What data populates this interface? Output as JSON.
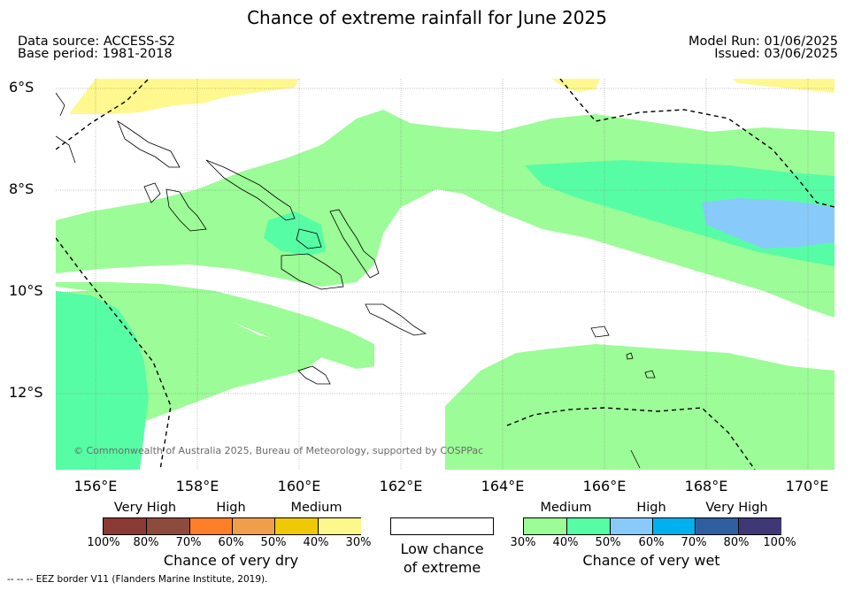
{
  "title": "Chance of extreme rainfall for June 2025",
  "source": {
    "data_source": "Data source: ACCESS-S2",
    "base_period": "Base period: 1981-2018",
    "model_run": "Model Run: 01/06/2025",
    "issued": "Issued: 03/06/2025"
  },
  "map": {
    "lat_labels": [
      "6°S",
      "8°S",
      "10°S",
      "12°S"
    ],
    "lon_labels": [
      "156°E",
      "158°E",
      "160°E",
      "162°E",
      "164°E",
      "166°E",
      "168°E",
      "170°E"
    ],
    "copyright": "© Commonwealth of Australia 2025, Bureau of Meteorology, supported by COSPPac",
    "colors": {
      "ocean": "#ffffff",
      "wet_medium_30_40": "#9cfc97",
      "wet_medium_40_50": "#57fda4",
      "wet_high_50_60": "#88cbfb",
      "dry_medium_30_40": "#fef88e"
    }
  },
  "legend": {
    "dry": {
      "headers": [
        "Very High",
        "High",
        "Medium"
      ],
      "ticks": [
        "100%",
        "80%",
        "70%",
        "60%",
        "50%",
        "40%",
        "30%"
      ],
      "title": "Chance of very dry",
      "colors": [
        "#8b3a35",
        "#8c4b3c",
        "#fd7f27",
        "#ef9f4b",
        "#efc903",
        "#fdf88c"
      ]
    },
    "low": {
      "line1": "Low chance",
      "line2": "of extreme",
      "color": "#ffffff"
    },
    "wet": {
      "headers": [
        "Medium",
        "High",
        "Very High"
      ],
      "ticks": [
        "30%",
        "40%",
        "50%",
        "60%",
        "70%",
        "80%",
        "100%"
      ],
      "title": "Chance of very wet",
      "colors": [
        "#9cfc97",
        "#57fda4",
        "#88cbfb",
        "#00b0ef",
        "#305fa0",
        "#3e3876"
      ]
    }
  },
  "footer": {
    "eez": "--  --  -- EEZ border V11 (Flanders Marine Institute, 2019)."
  }
}
